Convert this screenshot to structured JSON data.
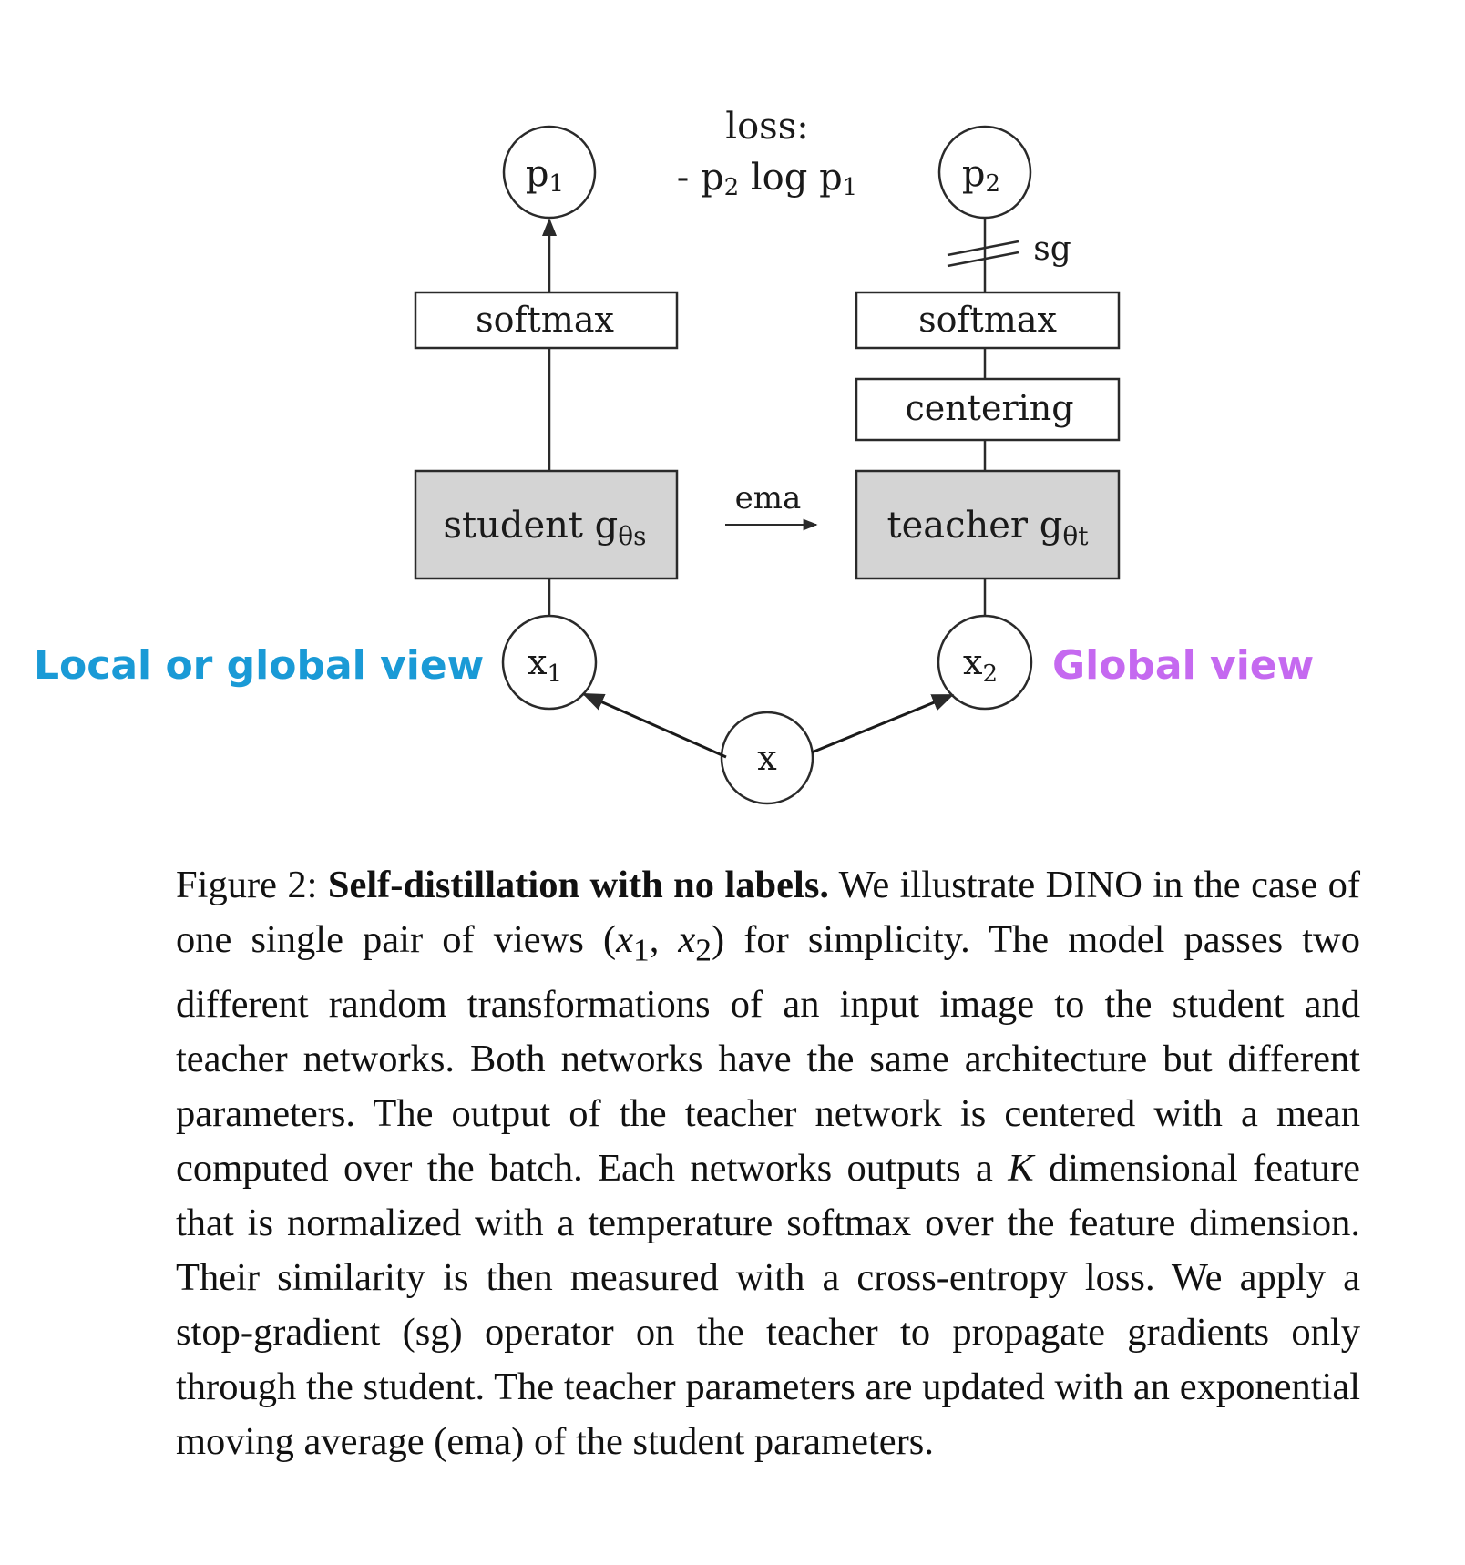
{
  "diagram": {
    "loss_title": "loss:",
    "loss_formula": {
      "lead": "- p",
      "p2_sub": "2",
      "mid": " log p",
      "p1_sub": "1"
    },
    "p1": {
      "base": "p",
      "sub": "1"
    },
    "p2": {
      "base": "p",
      "sub": "2"
    },
    "sg": "sg",
    "student_softmax": "softmax",
    "teacher_softmax": "softmax",
    "centering": "centering",
    "student": {
      "text": "student g",
      "sub": "θs"
    },
    "teacher": {
      "text": "teacher g",
      "sub": "θt"
    },
    "ema": "ema",
    "x1": {
      "base": "x",
      "sub": "1"
    },
    "x2": {
      "base": "x",
      "sub": "2"
    },
    "x": "x",
    "left_view_label": "Local or global view",
    "right_view_label": "Global view",
    "colors": {
      "left_view": "#1a9ad6",
      "right_view": "#c569f0",
      "backbone_fill": "#d4d4d4",
      "stroke": "#2a2a2a"
    }
  },
  "caption": {
    "label": "Figure 2:",
    "title": "Self-distillation with no labels.",
    "s1a": " We illustrate DINO in the case of one single pair of views (",
    "v1": "x",
    "v1_sub": "1",
    "comma": ", ",
    "v2": "x",
    "v2_sub": "2",
    "s1b": ") for simplicity. The model passes two different random transformations of an input image to the student and teacher networks. Both networks have the same architecture but different parameters. The output of the teacher network is centered with a mean computed over the batch. Each networks outputs a ",
    "k": "K",
    "s2": " dimensional feature that is normalized with a temperature softmax over the feature dimension. Their similarity is then measured with a cross-entropy loss. We apply a stop-gradient (sg) operator on the teacher to propagate gradients only through the student. The teacher parameters are updated with an exponential moving average (ema) of the student parameters."
  }
}
